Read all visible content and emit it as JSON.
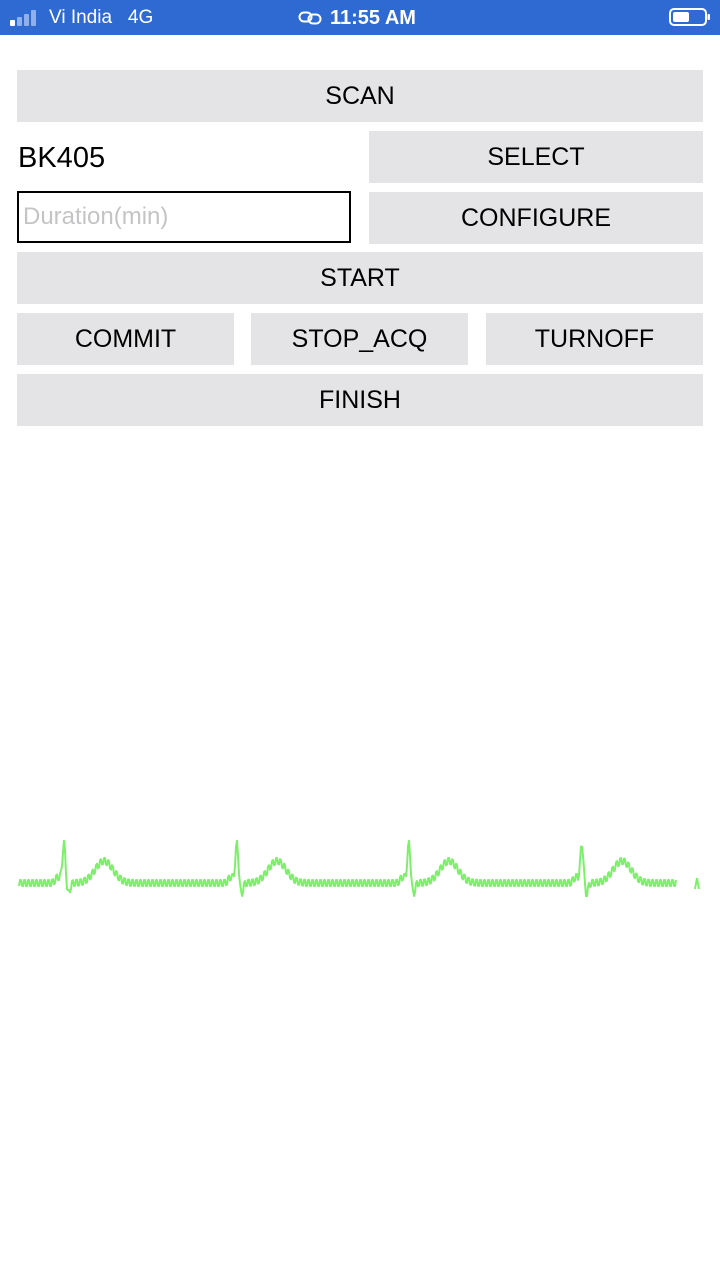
{
  "status_bar": {
    "carrier": "Vi India",
    "network": "4G",
    "time": "11:55 AM",
    "link_icon": "link-icon",
    "battery_icon": "battery-icon",
    "signal_icon": "signal-bars-icon"
  },
  "controls": {
    "scan_label": "SCAN",
    "device_name": "BK405",
    "select_label": "SELECT",
    "duration": {
      "value": "",
      "placeholder": "Duration(min)"
    },
    "configure_label": "CONFIGURE",
    "start_label": "START",
    "commit_label": "COMMIT",
    "stop_acq_label": "STOP_ACQ",
    "turnoff_label": "TURNOFF",
    "finish_label": "FINISH"
  },
  "theme": {
    "status_bar_bg": "#2f6ad3",
    "button_bg": "#e4e4e6",
    "waveform_color": "#7df06a"
  }
}
